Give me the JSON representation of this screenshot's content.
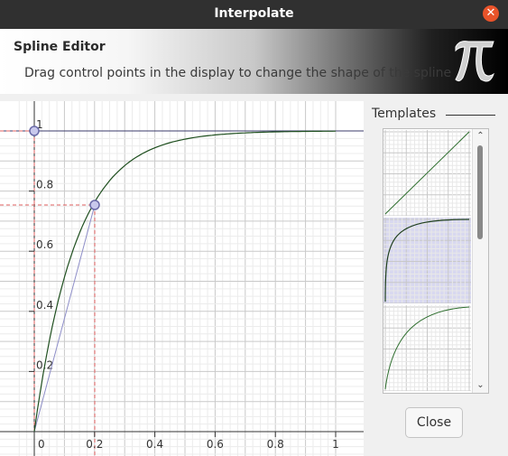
{
  "window": {
    "title": "Interpolate"
  },
  "banner": {
    "title": "Spline Editor",
    "subtitle": "Drag control points in the display to change the shape of the spline",
    "icon": "pi-icon"
  },
  "editor": {
    "x_ticks": [
      "0",
      "0.2",
      "0.4",
      "0.6",
      "0.8",
      "1"
    ],
    "y_ticks": [
      "0.2",
      "0.4",
      "0.6",
      "0.8",
      "1"
    ],
    "control_points": [
      {
        "x": 0.0,
        "y": 1.0
      },
      {
        "x": 0.2,
        "y": 0.75
      }
    ],
    "curve": "ease-out"
  },
  "templates": {
    "label": "Templates",
    "items": [
      "linear",
      "ease-out-sharp",
      "ease-out"
    ],
    "selected_index": 1
  },
  "buttons": {
    "close": "Close"
  },
  "colors": {
    "curve": "#1f4f1f",
    "control_line": "#8e8ec8",
    "selection": "#d8d8f0",
    "grid": "#dcdcdc"
  }
}
